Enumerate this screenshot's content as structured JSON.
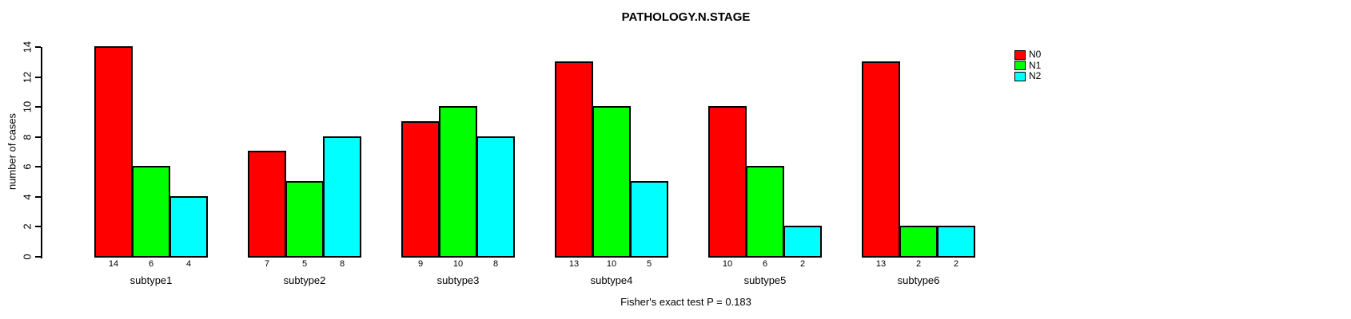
{
  "title": "PATHOLOGY.N.STAGE",
  "footer": "Fisher's exact test P = 0.183",
  "colors": {
    "background": "#ffffff",
    "axis": "#000000",
    "text": "#000000",
    "n0": "#ff0000",
    "n1": "#00ff00",
    "n2": "#00ffff"
  },
  "chart_data": {
    "type": "bar",
    "grouped": true,
    "title": "PATHOLOGY.N.STAGE",
    "xlabel": "",
    "ylabel": "number of cases",
    "categories": [
      "subtype1",
      "subtype2",
      "subtype3",
      "subtype4",
      "subtype5",
      "subtype6"
    ],
    "series": [
      {
        "name": "N0",
        "color": "#ff0000",
        "values": [
          14,
          7,
          9,
          13,
          10,
          13
        ]
      },
      {
        "name": "N1",
        "color": "#00ff00",
        "values": [
          6,
          5,
          10,
          10,
          6,
          2
        ]
      },
      {
        "name": "N2",
        "color": "#00ffff",
        "values": [
          4,
          8,
          8,
          5,
          2,
          2
        ]
      }
    ],
    "ylim": [
      0,
      14
    ],
    "yticks": [
      0,
      2,
      4,
      6,
      8,
      10,
      12,
      14
    ],
    "bar_value_labels_shown": true,
    "grid": false,
    "legend_position": "right",
    "annotation": "Fisher's exact test P = 0.183"
  }
}
